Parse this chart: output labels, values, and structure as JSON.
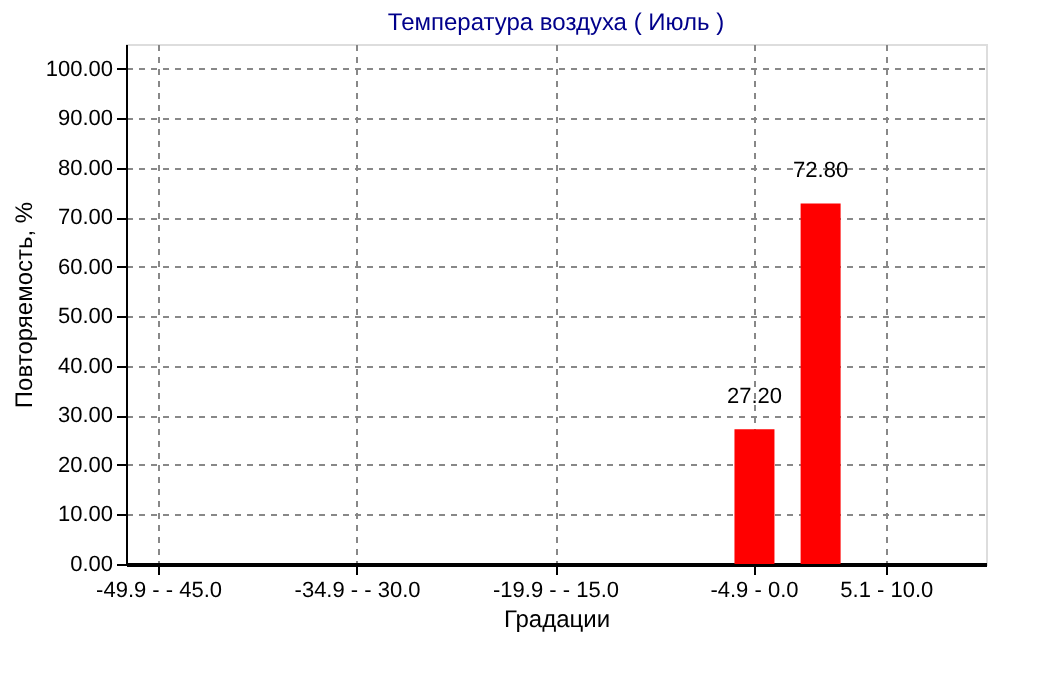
{
  "chart_data": {
    "type": "bar",
    "title": "Температура воздуха     ( Июль )",
    "xlabel": "Градации",
    "ylabel": "Повторяемость, %",
    "categories": [
      "-49.9 -  - 45.0",
      null,
      null,
      "-34.9 -  - 30.0",
      null,
      null,
      "-19.9 -  - 15.0",
      null,
      null,
      "-4.9 - 0.0",
      null,
      "5.1 - 10.0",
      null
    ],
    "values": [
      null,
      null,
      null,
      null,
      null,
      null,
      null,
      null,
      null,
      27.2,
      72.8,
      null,
      null
    ],
    "value_labels": [
      null,
      null,
      null,
      null,
      null,
      null,
      null,
      null,
      null,
      "27.20",
      "72.80",
      null,
      null
    ],
    "color": "#ff0000",
    "ylim": [
      0,
      105
    ],
    "yticks": [
      {
        "value": 0,
        "label": "0.00"
      },
      {
        "value": 10,
        "label": "10.00"
      },
      {
        "value": 20,
        "label": "20.00"
      },
      {
        "value": 30,
        "label": "30.00"
      },
      {
        "value": 40,
        "label": "40.00"
      },
      {
        "value": 50,
        "label": "50.00"
      },
      {
        "value": 60,
        "label": "60.00"
      },
      {
        "value": 70,
        "label": "70.00"
      },
      {
        "value": 80,
        "label": "80.00"
      },
      {
        "value": 90,
        "label": "90.00"
      },
      {
        "value": 100,
        "label": "100.00"
      }
    ],
    "grid": true
  }
}
